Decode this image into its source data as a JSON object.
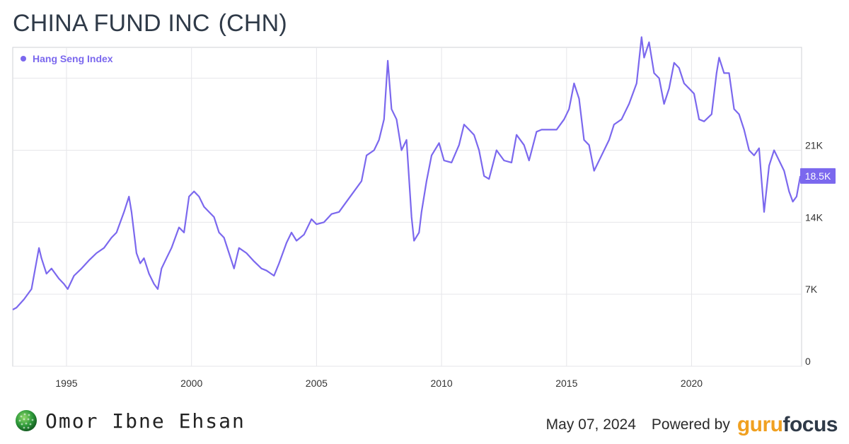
{
  "header": {
    "title": "CHINA FUND INC",
    "ticker": "(CHN)"
  },
  "footer": {
    "author": "Omor Ibne Ehsan",
    "date": "May 07, 2024",
    "powered_by": "Powered by",
    "brand_part1": "guru",
    "brand_part2": "focus"
  },
  "colors": {
    "series": "#7b68ee",
    "grid": "#e6e6ea",
    "axis_text": "#333333",
    "brand_orange": "#f0a020",
    "brand_dark": "#2f3a48"
  },
  "chart_data": {
    "type": "line",
    "legend": {
      "position": "top-left"
    },
    "grid": true,
    "xlim": [
      1992.85,
      2024.4
    ],
    "ylim": [
      0,
      31000
    ],
    "x_ticks": [
      1995,
      2000,
      2005,
      2010,
      2015,
      2020
    ],
    "x_tick_labels": [
      "1995",
      "2000",
      "2005",
      "2010",
      "2015",
      "2020"
    ],
    "y_ticks": [
      0,
      7000,
      14000,
      21000
    ],
    "y_tick_labels": [
      "0",
      "7K",
      "14K",
      "21K"
    ],
    "y_gridlines": [
      0,
      7000,
      14000,
      21000,
      28000
    ],
    "last_value": 18500,
    "last_value_label": "18.5K",
    "series": [
      {
        "name": "Hang Seng Index",
        "x": [
          1992.85,
          1993.0,
          1993.3,
          1993.6,
          1993.9,
          1994.0,
          1994.2,
          1994.4,
          1994.7,
          1994.9,
          1995.05,
          1995.3,
          1995.6,
          1995.9,
          1996.2,
          1996.5,
          1996.8,
          1997.0,
          1997.3,
          1997.5,
          1997.6,
          1997.8,
          1997.95,
          1998.1,
          1998.3,
          1998.5,
          1998.65,
          1998.8,
          1999.0,
          1999.2,
          1999.5,
          1999.7,
          1999.9,
          2000.1,
          2000.3,
          2000.5,
          2000.7,
          2000.9,
          2001.1,
          2001.3,
          2001.5,
          2001.7,
          2001.9,
          2002.2,
          2002.5,
          2002.8,
          2003.0,
          2003.3,
          2003.5,
          2003.8,
          2004.0,
          2004.2,
          2004.5,
          2004.8,
          2005.0,
          2005.3,
          2005.6,
          2005.9,
          2006.2,
          2006.5,
          2006.8,
          2007.0,
          2007.3,
          2007.5,
          2007.7,
          2007.85,
          2008.0,
          2008.2,
          2008.4,
          2008.6,
          2008.8,
          2008.9,
          2009.1,
          2009.2,
          2009.4,
          2009.6,
          2009.9,
          2010.1,
          2010.4,
          2010.7,
          2010.9,
          2011.1,
          2011.3,
          2011.5,
          2011.7,
          2011.9,
          2012.2,
          2012.5,
          2012.8,
          2013.0,
          2013.3,
          2013.5,
          2013.8,
          2014.0,
          2014.3,
          2014.6,
          2014.9,
          2015.1,
          2015.3,
          2015.5,
          2015.7,
          2015.9,
          2016.1,
          2016.4,
          2016.7,
          2016.9,
          2017.2,
          2017.5,
          2017.8,
          2018.0,
          2018.1,
          2018.3,
          2018.5,
          2018.7,
          2018.9,
          2019.1,
          2019.3,
          2019.5,
          2019.7,
          2019.9,
          2020.1,
          2020.3,
          2020.5,
          2020.8,
          2021.0,
          2021.1,
          2021.3,
          2021.5,
          2021.7,
          2021.9,
          2022.1,
          2022.3,
          2022.5,
          2022.7,
          2022.8,
          2022.9,
          2023.1,
          2023.3,
          2023.5,
          2023.7,
          2023.9,
          2024.05,
          2024.2,
          2024.35
        ],
        "values": [
          5500,
          5700,
          6500,
          7500,
          11500,
          10500,
          9000,
          9500,
          8500,
          8000,
          7500,
          8800,
          9500,
          10300,
          11000,
          11500,
          12500,
          13000,
          15000,
          16500,
          15000,
          11000,
          10000,
          10500,
          9000,
          8000,
          7500,
          9500,
          10500,
          11500,
          13500,
          13000,
          16500,
          17000,
          16500,
          15500,
          15000,
          14500,
          13000,
          12500,
          11000,
          9500,
          11500,
          11000,
          10200,
          9500,
          9300,
          8800,
          10000,
          12000,
          13000,
          12200,
          12800,
          14300,
          13800,
          14000,
          14800,
          15000,
          16000,
          17000,
          18000,
          20500,
          21000,
          22000,
          24000,
          29700,
          25000,
          24000,
          21000,
          22000,
          14500,
          12200,
          13000,
          15000,
          18000,
          20500,
          21700,
          20000,
          19800,
          21500,
          23500,
          23000,
          22500,
          21000,
          18500,
          18200,
          21000,
          20000,
          19800,
          22500,
          21500,
          20000,
          22800,
          23000,
          23000,
          23000,
          24000,
          25000,
          27500,
          26000,
          22000,
          21500,
          19000,
          20500,
          22000,
          23500,
          24000,
          25500,
          27500,
          32000,
          30000,
          31500,
          28500,
          28000,
          25500,
          27000,
          29500,
          29000,
          27500,
          27000,
          26500,
          24000,
          23800,
          24500,
          28500,
          30000,
          28500,
          28500,
          25000,
          24500,
          23000,
          21000,
          20500,
          21200,
          18000,
          15000,
          19500,
          21000,
          20000,
          19000,
          17000,
          16000,
          16500,
          18500
        ]
      }
    ]
  }
}
